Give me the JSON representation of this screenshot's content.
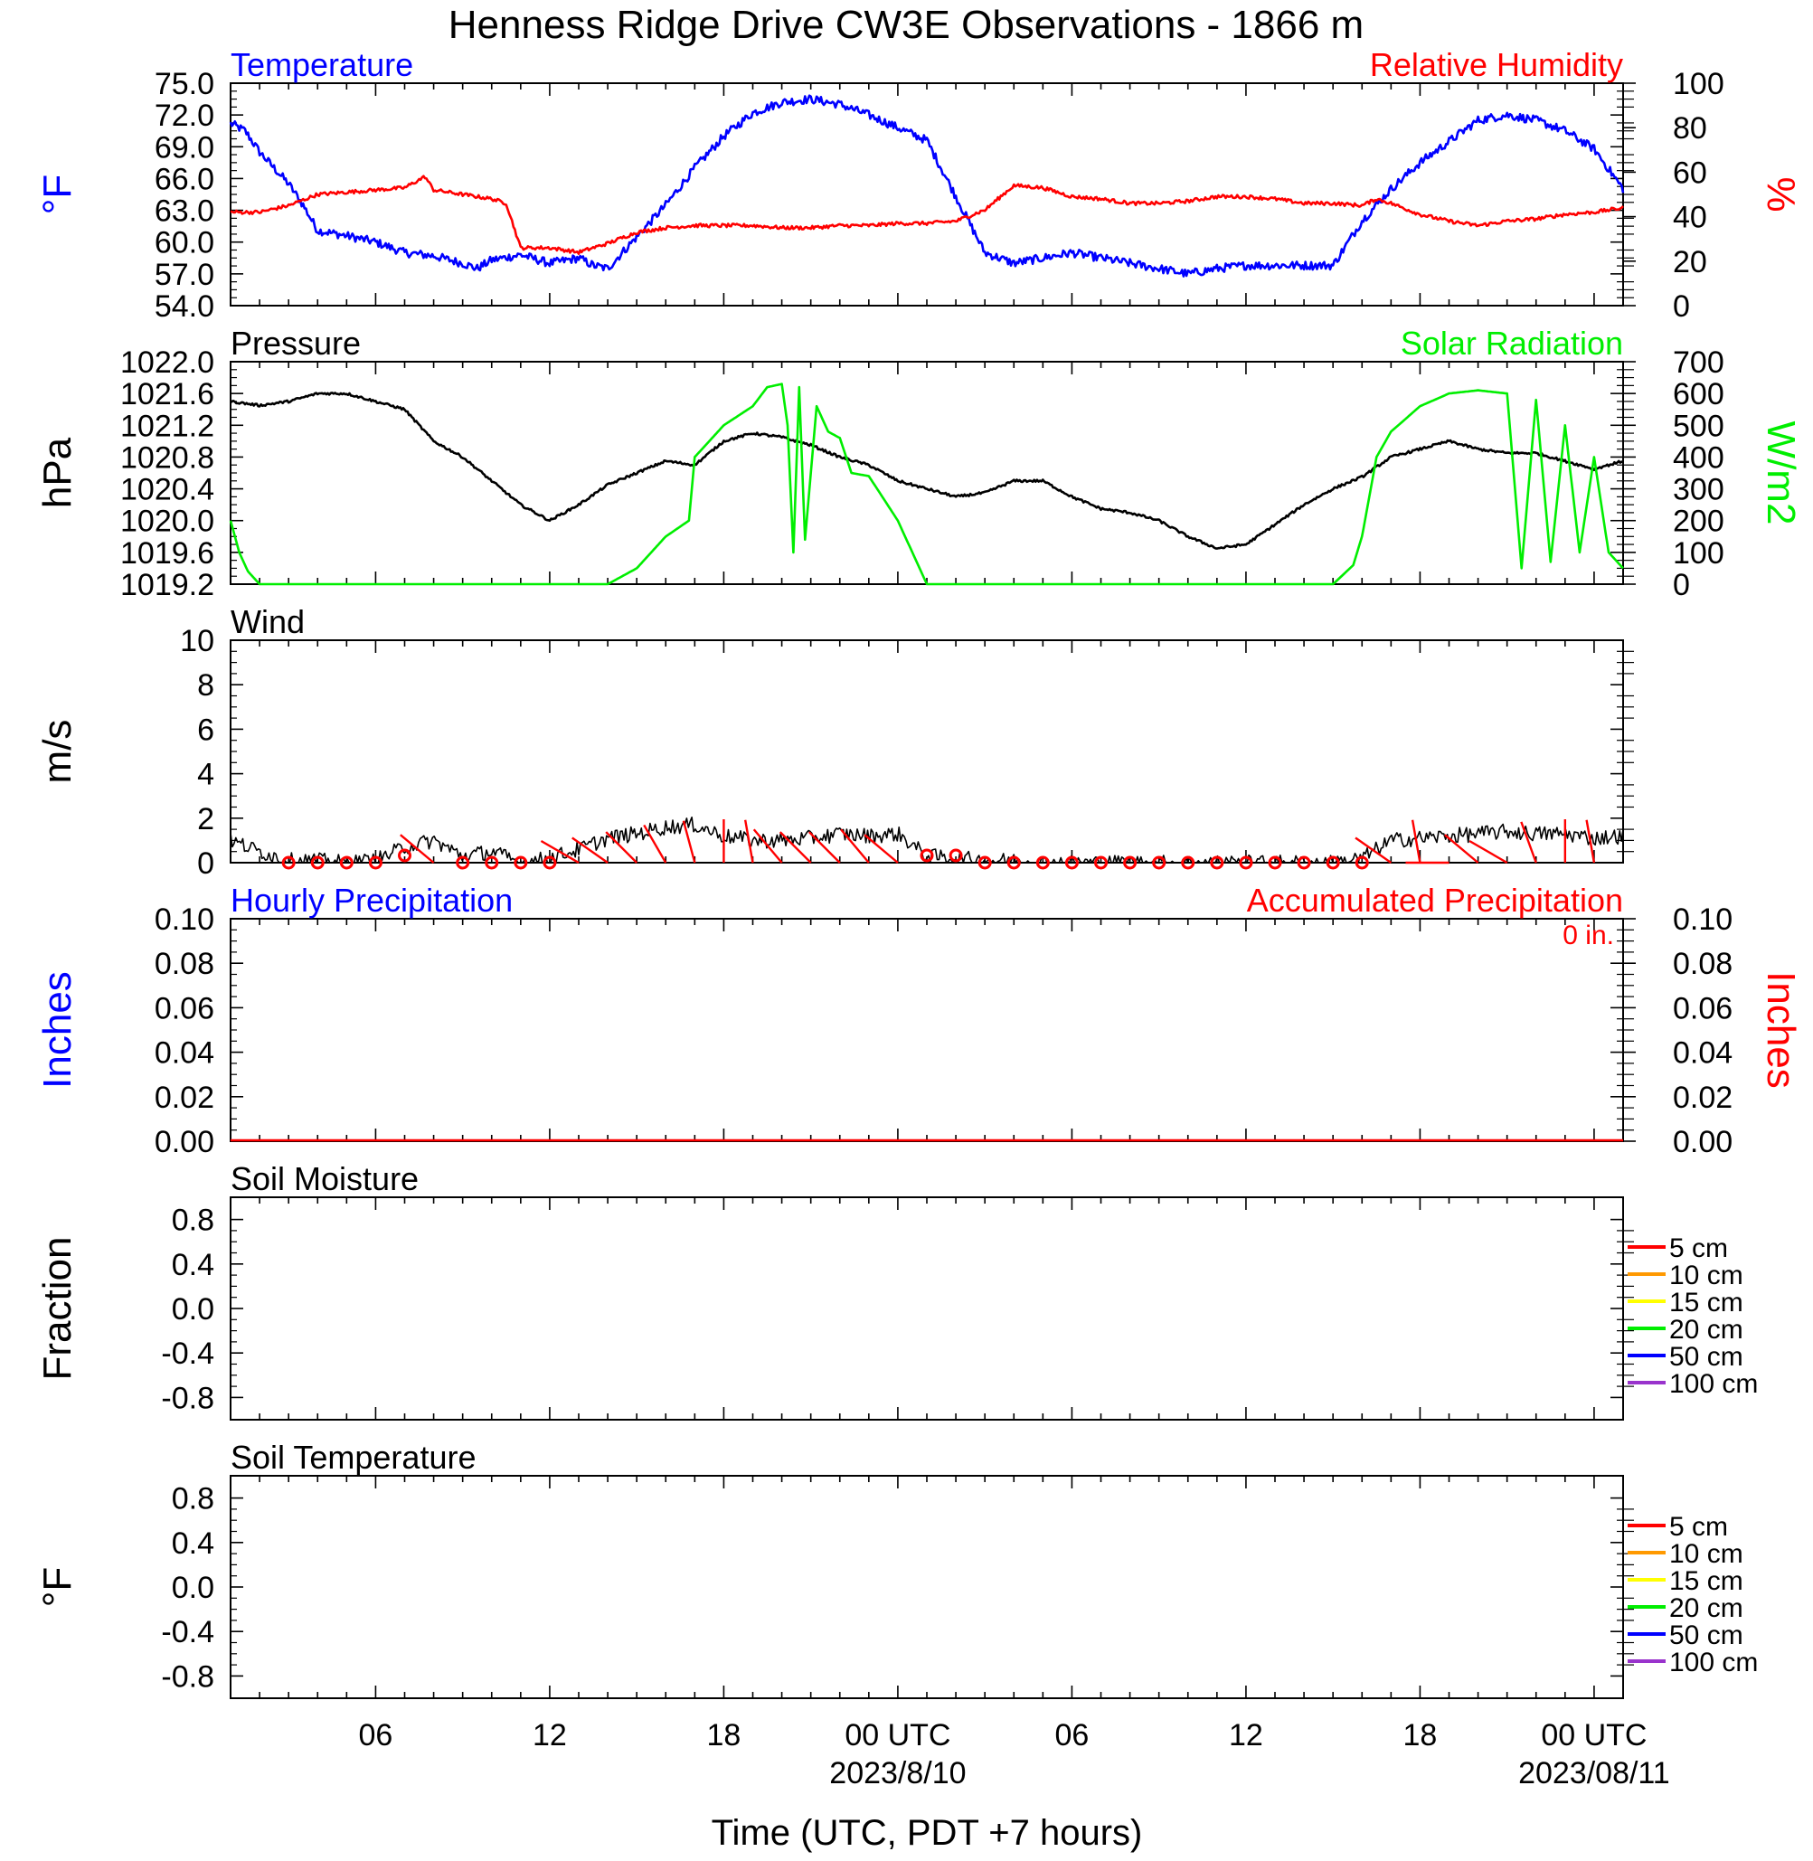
{
  "title": "Henness Ridge Drive CW3E Observations - 1866 m",
  "x_axis": {
    "label": "Time (UTC, PDT +7 hours)",
    "tick_labels": [
      "06",
      "12",
      "18",
      "00 UTC",
      "06",
      "12",
      "18",
      "00 UTC"
    ],
    "date_labels": [
      "2023/8/10",
      "2023/08/11"
    ]
  },
  "colors": {
    "temperature": "#0000ff",
    "humidity": "#ff0000",
    "pressure": "#000000",
    "solar": "#00ee00",
    "wind": "#000000",
    "barb": "#ff0000",
    "hourly_precip": "#0000ff",
    "accum_precip": "#ff0000"
  },
  "chart_data": [
    {
      "type": "line",
      "panel": "temperature-humidity",
      "left_title": "Temperature",
      "right_title": "Relative Humidity",
      "ylabel_left": "°F",
      "ylabel_right": "%",
      "ylim_left": [
        54,
        75
      ],
      "ylim_right": [
        0,
        100
      ],
      "yticks_left": [
        "75.0",
        "72.0",
        "69.0",
        "66.0",
        "63.0",
        "60.0",
        "57.0",
        "54.0"
      ],
      "yticks_right": [
        "100",
        "80",
        "60",
        "40",
        "20",
        "0"
      ],
      "x_hours_range": [
        1,
        49
      ],
      "series": [
        {
          "name": "Temperature",
          "axis": "left",
          "x": [
            1,
            1.5,
            2,
            3,
            3.5,
            4,
            5,
            6,
            7,
            8,
            9,
            9.5,
            10,
            11,
            12,
            13,
            13.5,
            14,
            15,
            16,
            17,
            18,
            19,
            20,
            21,
            22,
            23,
            24,
            25,
            26,
            27,
            28,
            29,
            30,
            31,
            32,
            33,
            34,
            35,
            36,
            37,
            38,
            39,
            40,
            41,
            42,
            43,
            44,
            45,
            46,
            47,
            48,
            49
          ],
          "y": [
            71.2,
            70.5,
            68.5,
            65.5,
            63.5,
            61.1,
            60.6,
            60.0,
            59.0,
            58.7,
            58.0,
            57.5,
            58.3,
            58.8,
            58.0,
            58.5,
            57.8,
            57.5,
            60.5,
            63.5,
            67.0,
            70.0,
            72.2,
            73.2,
            73.5,
            73.0,
            72.0,
            70.8,
            69.6,
            64.3,
            59.0,
            58.0,
            58.5,
            59.0,
            58.5,
            58.0,
            57.5,
            57.0,
            57.5,
            57.8,
            57.8,
            57.8,
            57.8,
            62.0,
            65.0,
            67.5,
            69.5,
            71.5,
            72.0,
            71.5,
            70.5,
            68.8,
            65.0
          ]
        },
        {
          "name": "Relative Humidity",
          "axis": "right",
          "x": [
            1,
            2,
            3,
            4,
            5,
            6,
            7,
            7.7,
            8,
            9,
            10,
            10.5,
            11,
            12,
            13,
            14,
            15,
            16,
            17,
            18,
            19,
            20,
            21,
            22,
            23,
            24,
            25,
            26,
            27,
            28,
            29,
            30,
            31,
            32,
            33,
            34,
            35,
            36,
            37,
            38,
            39,
            40,
            40.5,
            41,
            42,
            43,
            44,
            45,
            46,
            47,
            48,
            49
          ],
          "y": [
            42,
            42,
            45,
            50,
            51,
            52,
            53,
            58,
            52,
            50,
            48,
            46,
            26,
            26,
            24,
            28,
            33,
            35,
            36,
            36,
            36,
            35,
            35,
            36,
            36,
            37,
            37,
            38,
            43,
            54,
            53,
            49,
            48,
            46,
            46,
            47,
            49,
            49,
            48,
            46,
            46,
            45,
            48,
            46,
            41,
            38,
            36,
            38,
            39,
            41,
            42,
            44
          ]
        }
      ]
    },
    {
      "type": "line",
      "panel": "pressure-solar",
      "left_title": "Pressure",
      "right_title": "Solar Radiation",
      "ylabel_left": "hPa",
      "ylabel_right": "W/m2",
      "ylim_left": [
        1019.2,
        1022.0
      ],
      "ylim_right": [
        0,
        700
      ],
      "yticks_left": [
        "1022.0",
        "1021.6",
        "1021.2",
        "1020.8",
        "1020.4",
        "1020.0",
        "1019.6",
        "1019.2"
      ],
      "yticks_right": [
        "700",
        "600",
        "500",
        "400",
        "300",
        "200",
        "100",
        "0"
      ],
      "x_hours_range": [
        1,
        49
      ],
      "series": [
        {
          "name": "Pressure",
          "axis": "left",
          "x": [
            1,
            2,
            3,
            4,
            5,
            6,
            7,
            8,
            9,
            10,
            11,
            12,
            13,
            14,
            15,
            16,
            17,
            18,
            19,
            20,
            21,
            22,
            23,
            24,
            25,
            26,
            27,
            28,
            29,
            30,
            31,
            32,
            33,
            34,
            35,
            36,
            37,
            38,
            39,
            40,
            41,
            42,
            43,
            44,
            45,
            46,
            47,
            48,
            49
          ],
          "y": [
            1021.5,
            1021.45,
            1021.5,
            1021.6,
            1021.6,
            1021.5,
            1021.4,
            1021.0,
            1020.8,
            1020.5,
            1020.2,
            1020.0,
            1020.2,
            1020.45,
            1020.6,
            1020.75,
            1020.7,
            1021.0,
            1021.1,
            1021.05,
            1020.95,
            1020.8,
            1020.7,
            1020.5,
            1020.4,
            1020.3,
            1020.35,
            1020.5,
            1020.5,
            1020.3,
            1020.15,
            1020.1,
            1020.0,
            1019.8,
            1019.65,
            1019.7,
            1019.95,
            1020.2,
            1020.4,
            1020.55,
            1020.8,
            1020.9,
            1021.0,
            1020.9,
            1020.85,
            1020.85,
            1020.75,
            1020.65,
            1020.75
          ]
        },
        {
          "name": "Solar Radiation",
          "axis": "right",
          "x": [
            1,
            1.3,
            1.6,
            2,
            3,
            4,
            5,
            6,
            7,
            8,
            9,
            10,
            11,
            12,
            13,
            14,
            15,
            16,
            16.8,
            17,
            18,
            19,
            19.5,
            20,
            20.2,
            20.4,
            20.6,
            20.8,
            21.2,
            21.6,
            22,
            22.4,
            23,
            24,
            25,
            26,
            27,
            28,
            29,
            30,
            31,
            32,
            33,
            34,
            35,
            36,
            37,
            38,
            39,
            39.7,
            40,
            40.5,
            41,
            42,
            43,
            44,
            45,
            45.5,
            46,
            46.5,
            47,
            47.5,
            48,
            48.5,
            49
          ],
          "y": [
            200,
            100,
            40,
            0,
            0,
            0,
            0,
            0,
            0,
            0,
            0,
            0,
            0,
            0,
            0,
            0,
            50,
            150,
            200,
            400,
            500,
            560,
            620,
            630,
            500,
            100,
            620,
            140,
            560,
            480,
            460,
            350,
            340,
            200,
            0,
            0,
            0,
            0,
            0,
            0,
            0,
            0,
            0,
            0,
            0,
            0,
            0,
            0,
            0,
            60,
            150,
            400,
            480,
            560,
            600,
            610,
            600,
            50,
            580,
            70,
            500,
            100,
            400,
            100,
            50
          ]
        }
      ]
    },
    {
      "type": "line",
      "panel": "wind",
      "left_title": "Wind",
      "ylabel_left": "m/s",
      "ylim_left": [
        0,
        10
      ],
      "yticks_left": [
        "10",
        "8",
        "6",
        "4",
        "2",
        "0"
      ],
      "x_hours_range": [
        1,
        49
      ],
      "series": [
        {
          "name": "Wind",
          "axis": "left",
          "x": [
            1,
            2,
            3,
            4,
            5,
            6,
            7,
            8,
            9,
            10,
            11,
            12,
            13,
            14,
            15,
            16,
            17,
            18,
            19,
            20,
            21,
            22,
            23,
            24,
            25,
            26,
            27,
            28,
            29,
            30,
            31,
            32,
            33,
            34,
            35,
            36,
            37,
            38,
            39,
            40,
            41,
            42,
            43,
            44,
            45,
            46,
            47,
            48,
            49
          ],
          "y": [
            1.0,
            0.5,
            0.1,
            0.1,
            0.0,
            0.1,
            0.7,
            1.0,
            0.3,
            0.5,
            0.0,
            0.2,
            0.6,
            1.1,
            1.3,
            1.6,
            1.7,
            1.2,
            1.0,
            1.0,
            1.1,
            1.3,
            1.2,
            1.3,
            0.3,
            0.2,
            0.1,
            0.1,
            0.0,
            0.0,
            0.0,
            0.0,
            0.0,
            0.0,
            0.0,
            0.0,
            0.0,
            0.0,
            0.0,
            0.2,
            1.0,
            1.1,
            1.2,
            1.3,
            1.4,
            1.3,
            1.3,
            1.1,
            1.2
          ]
        }
      ],
      "barbs": {
        "calm_hours": [
          3,
          4,
          5,
          6,
          9,
          10,
          11,
          12,
          27,
          28,
          29,
          30,
          31,
          32,
          33,
          34,
          35,
          36,
          37,
          38,
          39,
          40
        ],
        "light_calm_hours": [
          7,
          25,
          26
        ]
      }
    },
    {
      "type": "bar",
      "panel": "precipitation",
      "left_title": "Hourly Precipitation",
      "right_title": "Accumulated Precipitation",
      "annotation": "0 in.",
      "ylabel_left": "Inches",
      "ylabel_right": "Inches",
      "ylim_left": [
        0,
        0.1
      ],
      "ylim_right": [
        0,
        0.1
      ],
      "yticks_left": [
        "0.10",
        "0.08",
        "0.06",
        "0.04",
        "0.02",
        "0.00"
      ],
      "yticks_right": [
        "0.10",
        "0.08",
        "0.06",
        "0.04",
        "0.02",
        "0.00"
      ],
      "values": [
        0
      ]
    },
    {
      "type": "line",
      "panel": "soil-moisture",
      "left_title": "Soil Moisture",
      "ylabel_left": "Fraction",
      "yticks_left": [
        "0.8",
        "0.4",
        "0.0",
        "-0.4",
        "-0.8"
      ],
      "legend": [
        {
          "name": "5 cm",
          "color": "#ff0000"
        },
        {
          "name": "10 cm",
          "color": "#ff9900"
        },
        {
          "name": "15 cm",
          "color": "#ffff00"
        },
        {
          "name": "20 cm",
          "color": "#00ee00"
        },
        {
          "name": "50 cm",
          "color": "#0000ff"
        },
        {
          "name": "100 cm",
          "color": "#9933cc"
        }
      ],
      "series": []
    },
    {
      "type": "line",
      "panel": "soil-temperature",
      "left_title": "Soil Temperature",
      "ylabel_left": "°F",
      "yticks_left": [
        "0.8",
        "0.4",
        "0.0",
        "-0.4",
        "-0.8"
      ],
      "legend": [
        {
          "name": "5 cm",
          "color": "#ff0000"
        },
        {
          "name": "10 cm",
          "color": "#ff9900"
        },
        {
          "name": "15 cm",
          "color": "#ffff00"
        },
        {
          "name": "20 cm",
          "color": "#00ee00"
        },
        {
          "name": "50 cm",
          "color": "#0000ff"
        },
        {
          "name": "100 cm",
          "color": "#9933cc"
        }
      ],
      "series": []
    }
  ]
}
